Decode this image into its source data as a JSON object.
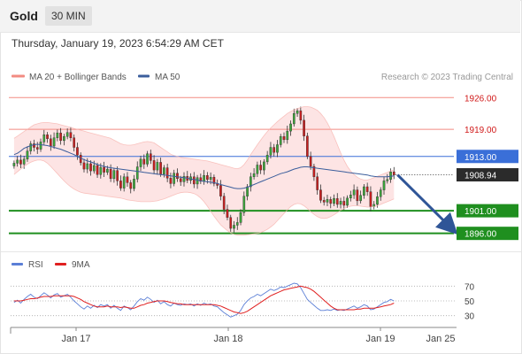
{
  "header": {
    "instrument": "Gold",
    "timeframe": "30 MIN"
  },
  "timestamp": "Thursday, January 19, 2023 6:54:29 AM CET",
  "legend": {
    "bollinger": {
      "label": "MA 20 + Bollinger Bands",
      "color": "#f28b82"
    },
    "ma50": {
      "label": "MA 50",
      "color": "#3b5e9c"
    },
    "copyright": "Research © 2023 Trading Central"
  },
  "rsi_legend": {
    "rsi": {
      "label": "RSI",
      "color": "#5b7fd6"
    },
    "ma9": {
      "label": "9MA",
      "color": "#e02020"
    }
  },
  "chart_data": {
    "type": "candlestick",
    "x_labels": [
      "Jan 17",
      "Jan 18",
      "Jan 19",
      "Jan 25"
    ],
    "price_range": [
      1893.2,
      1928.6
    ],
    "current_price": {
      "label": "1908.94",
      "value": 1908.94
    },
    "levels": [
      {
        "label": "1926.00",
        "value": 1926.0,
        "kind": "resistance"
      },
      {
        "label": "1919.00",
        "value": 1919.0,
        "kind": "resistance"
      },
      {
        "label": "1913.00",
        "value": 1913.0,
        "kind": "pivot"
      },
      {
        "label": "1901.00",
        "value": 1901.0,
        "kind": "support"
      },
      {
        "label": "1896.00",
        "value": 1896.0,
        "kind": "support"
      }
    ],
    "forecast_arrow": {
      "from": 1908.94,
      "to": 1896.0
    },
    "closes": [
      1911.5,
      1912.2,
      1911.3,
      1912.4,
      1914.2,
      1915.8,
      1915.0,
      1914.6,
      1916.2,
      1917.8,
      1916.9,
      1915.3,
      1917.1,
      1918.2,
      1916.5,
      1917.4,
      1918.3,
      1917.1,
      1915.0,
      1913.3,
      1911.6,
      1910.2,
      1911.4,
      1909.8,
      1911.0,
      1909.0,
      1910.6,
      1909.5,
      1910.2,
      1908.1,
      1909.9,
      1907.6,
      1906.0,
      1908.5,
      1907.2,
      1905.9,
      1908.0,
      1910.7,
      1912.4,
      1911.3,
      1913.6,
      1912.1,
      1910.0,
      1911.7,
      1909.1,
      1910.5,
      1908.2,
      1907.0,
      1909.3,
      1908.1,
      1907.4,
      1908.6,
      1907.7,
      1908.5,
      1906.9,
      1908.3,
      1907.5,
      1908.8,
      1907.9,
      1908.4,
      1907.0,
      1906.6,
      1904.2,
      1901.3,
      1899.5,
      1897.1,
      1897.8,
      1898.4,
      1900.6,
      1904.2,
      1906.3,
      1908.5,
      1909.2,
      1911.1,
      1910.0,
      1911.8,
      1913.3,
      1915.0,
      1913.9,
      1915.6,
      1917.4,
      1916.7,
      1918.6,
      1920.2,
      1922.5,
      1923.1,
      1921.0,
      1917.5,
      1913.0,
      1910.8,
      1908.5,
      1905.6,
      1903.3,
      1902.9,
      1903.5,
      1902.6,
      1903.7,
      1902.4,
      1903.1,
      1902.2,
      1903.8,
      1904.5,
      1905.6,
      1903.2,
      1904.4,
      1906.3,
      1905.2,
      1901.9,
      1902.4,
      1904.1,
      1905.6,
      1907.6,
      1907.9,
      1909.6,
      1908.9
    ],
    "ma50": [
      1913.4,
      1913.7,
      1914.2,
      1914.8,
      1915.1,
      1915.4,
      1915.6,
      1915.7,
      1915.6,
      1915.5,
      1915.4,
      1915.2,
      1915.0,
      1914.8,
      1914.6,
      1914.3,
      1914.0,
      1913.7,
      1913.4,
      1913.0,
      1912.6,
      1912.3,
      1912.0,
      1911.8,
      1911.5,
      1911.2,
      1911.0,
      1910.8,
      1910.6,
      1910.5,
      1910.4,
      1910.3,
      1910.2,
      1910.1,
      1910.0,
      1909.9,
      1909.8,
      1909.7,
      1909.6,
      1909.5,
      1909.4,
      1909.3,
      1909.2,
      1909.1,
      1909.0,
      1908.9,
      1908.8,
      1908.7,
      1908.6,
      1908.5,
      1908.4,
      1908.3,
      1908.2,
      1908.0,
      1907.9,
      1907.8,
      1907.6,
      1907.5,
      1907.4,
      1907.3,
      1907.2,
      1907.0,
      1906.8,
      1906.6,
      1906.4,
      1906.2,
      1906.0,
      1905.9,
      1905.9,
      1906.0,
      1906.2,
      1906.5,
      1906.8,
      1907.1,
      1907.4,
      1907.7,
      1908.0,
      1908.3,
      1908.6,
      1908.9,
      1909.2,
      1909.4,
      1909.6,
      1909.9,
      1910.2,
      1910.4,
      1910.6,
      1910.7,
      1910.7,
      1910.6,
      1910.5,
      1910.4,
      1910.3,
      1910.2,
      1910.1,
      1910.0,
      1909.9,
      1909.8,
      1909.7,
      1909.6,
      1909.5,
      1909.4,
      1909.3,
      1909.2,
      1909.1,
      1909.0,
      1908.9,
      1908.7,
      1908.6,
      1908.5,
      1908.5,
      1908.5,
      1908.5,
      1908.6,
      1908.7
    ],
    "bb_upper": [
      1917.0,
      1917.5,
      1918.0,
      1918.5,
      1919.0,
      1919.5,
      1920.0,
      1920.2,
      1920.4,
      1920.5,
      1920.5,
      1920.4,
      1920.3,
      1920.2,
      1920.0,
      1919.8,
      1919.6,
      1919.4,
      1919.2,
      1919.0,
      1918.8,
      1918.6,
      1918.4,
      1918.2,
      1918.0,
      1917.8,
      1917.6,
      1917.4,
      1917.2,
      1917.0,
      1916.6,
      1916.2,
      1915.8,
      1915.6,
      1915.5,
      1915.5,
      1915.6,
      1915.8,
      1916.0,
      1916.2,
      1916.3,
      1916.2,
      1916.0,
      1915.5,
      1915.0,
      1914.5,
      1914.0,
      1913.5,
      1913.2,
      1913.0,
      1912.8,
      1912.7,
      1912.6,
      1912.5,
      1912.4,
      1912.3,
      1912.2,
      1912.1,
      1912.0,
      1911.8,
      1911.6,
      1911.4,
      1911.2,
      1911.0,
      1910.8,
      1910.6,
      1910.4,
      1910.3,
      1910.5,
      1911.2,
      1912.2,
      1913.4,
      1914.5,
      1915.6,
      1916.6,
      1917.6,
      1918.5,
      1919.3,
      1920.0,
      1920.7,
      1921.3,
      1921.9,
      1922.5,
      1922.9,
      1923.3,
      1923.6,
      1923.8,
      1924.0,
      1924.0,
      1923.9,
      1923.6,
      1923.2,
      1922.5,
      1921.6,
      1920.4,
      1919.0,
      1917.4,
      1915.6,
      1913.8,
      1912.2,
      1910.8,
      1909.8,
      1909.0,
      1908.4,
      1908.0,
      1907.8,
      1907.8,
      1908.0,
      1908.3,
      1908.6,
      1908.9,
      1909.2,
      1909.5,
      1909.8,
      1910.0
    ],
    "bb_lower": [
      1909.0,
      1909.6,
      1910.2,
      1910.8,
      1911.3,
      1911.7,
      1912.0,
      1912.2,
      1912.2,
      1912.0,
      1911.5,
      1910.8,
      1910.0,
      1909.2,
      1908.4,
      1907.6,
      1906.9,
      1906.3,
      1905.8,
      1905.4,
      1905.1,
      1904.9,
      1904.8,
      1904.7,
      1904.6,
      1904.5,
      1904.4,
      1904.3,
      1904.2,
      1904.1,
      1904.0,
      1903.9,
      1903.8,
      1903.6,
      1903.4,
      1903.3,
      1903.2,
      1903.1,
      1903.0,
      1903.0,
      1903.0,
      1903.0,
      1903.1,
      1903.2,
      1903.4,
      1903.6,
      1903.9,
      1904.2,
      1904.5,
      1904.8,
      1905.0,
      1905.1,
      1905.1,
      1905.0,
      1904.8,
      1904.4,
      1903.8,
      1903.0,
      1902.0,
      1900.9,
      1899.8,
      1898.8,
      1897.9,
      1897.2,
      1896.6,
      1896.1,
      1895.8,
      1895.6,
      1895.6,
      1895.6,
      1895.7,
      1895.8,
      1895.9,
      1896.0,
      1896.2,
      1896.5,
      1896.9,
      1897.4,
      1898.0,
      1898.8,
      1899.6,
      1900.4,
      1901.2,
      1901.9,
      1902.4,
      1902.6,
      1902.5,
      1902.1,
      1901.5,
      1900.8,
      1900.2,
      1899.7,
      1899.4,
      1899.3,
      1899.4,
      1899.7,
      1900.1,
      1900.6,
      1901.1,
      1901.5,
      1901.8,
      1902.0,
      1902.1,
      1902.1,
      1902.0,
      1901.9,
      1901.8,
      1901.8,
      1901.9,
      1902.1,
      1902.4,
      1902.7,
      1903.0,
      1903.3,
      1903.6
    ],
    "rsi": {
      "range": [
        20,
        80
      ],
      "levels": [
        70,
        50,
        30
      ],
      "rsi_values": [
        48,
        51,
        47,
        52,
        56,
        59,
        55,
        53,
        57,
        61,
        58,
        54,
        58,
        60,
        55,
        57,
        59,
        55,
        50,
        46,
        42,
        39,
        43,
        40,
        44,
        41,
        45,
        43,
        45,
        40,
        44,
        40,
        37,
        43,
        41,
        38,
        43,
        49,
        53,
        51,
        55,
        52,
        48,
        51,
        46,
        49,
        45,
        43,
        47,
        45,
        44,
        46,
        45,
        46,
        43,
        46,
        44,
        47,
        45,
        46,
        43,
        42,
        38,
        34,
        31,
        28,
        30,
        32,
        37,
        45,
        50,
        54,
        56,
        59,
        57,
        60,
        63,
        66,
        64,
        66,
        69,
        68,
        70,
        72,
        74,
        73,
        68,
        60,
        52,
        48,
        44,
        40,
        37,
        37,
        38,
        37,
        39,
        37,
        38,
        37,
        39,
        41,
        43,
        40,
        42,
        45,
        43,
        38,
        39,
        42,
        45,
        48,
        49,
        52,
        50
      ],
      "ma9_values": [
        50,
        50,
        50,
        51,
        52,
        53,
        53,
        54,
        55,
        56,
        56,
        56,
        57,
        57,
        57,
        57,
        57,
        57,
        56,
        54,
        52,
        49,
        47,
        45,
        43,
        42,
        42,
        42,
        43,
        42,
        42,
        42,
        41,
        42,
        41,
        40,
        40,
        42,
        44,
        45,
        47,
        48,
        49,
        50,
        50,
        50,
        49,
        48,
        47,
        46,
        46,
        45,
        45,
        45,
        45,
        45,
        45,
        45,
        45,
        45,
        45,
        44,
        43,
        41,
        39,
        37,
        35,
        34,
        33,
        34,
        36,
        39,
        42,
        45,
        48,
        51,
        54,
        57,
        59,
        61,
        63,
        65,
        66,
        67,
        68,
        69,
        70,
        69,
        68,
        66,
        63,
        59,
        55,
        51,
        47,
        43,
        40,
        38,
        38,
        38,
        38,
        38,
        38,
        39,
        39,
        40,
        40,
        40,
        40,
        41,
        42,
        43,
        44,
        45,
        47
      ]
    }
  }
}
